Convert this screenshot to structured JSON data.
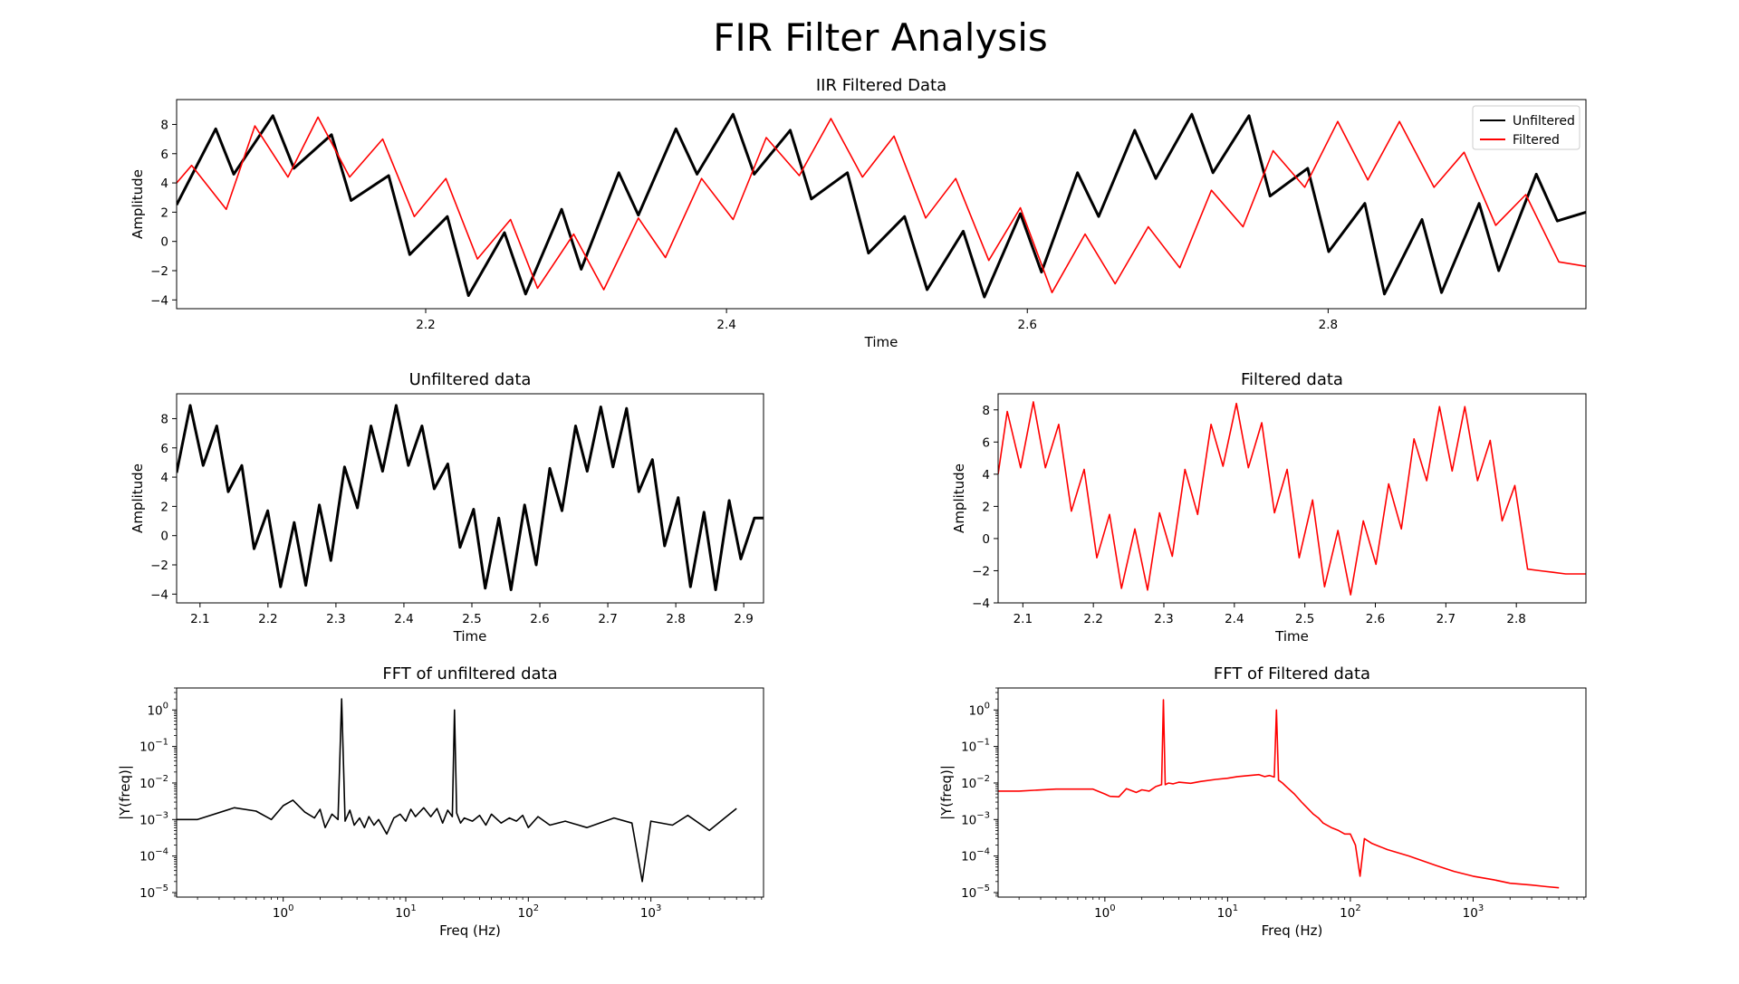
{
  "figure": {
    "suptitle": "FIR Filter Analysis",
    "colors": {
      "unfiltered": "#000000",
      "filtered": "#ff0000"
    }
  },
  "chart_data": [
    {
      "id": "p1",
      "type": "line",
      "title": "IIR Filtered Data",
      "xlabel": "Time",
      "ylabel": "Amplitude",
      "xlim": [
        2.0344,
        2.9714
      ],
      "ylim": [
        -4.6,
        9.7
      ],
      "xticks": [
        2.2,
        2.4,
        2.6,
        2.8
      ],
      "xtick_labels": [
        "2.2",
        "2.4",
        "2.6",
        "2.8"
      ],
      "yticks": [
        -4,
        -2,
        0,
        2,
        4,
        6,
        8
      ],
      "ytick_labels": [
        "−4",
        "−2",
        "0",
        "2",
        "4",
        "6",
        "8"
      ],
      "grid": false,
      "legend": "upper-right",
      "series": [
        {
          "name": "Unfiltered",
          "color": "#000000",
          "x": [
            2.0344,
            2.0604,
            2.0724,
            2.0984,
            2.1124,
            2.1374,
            2.1504,
            2.1754,
            2.1894,
            2.2144,
            2.2284,
            2.2524,
            2.2664,
            2.2904,
            2.3034,
            2.3284,
            2.3414,
            2.3664,
            2.3804,
            2.4044,
            2.4184,
            2.4424,
            2.4564,
            2.4804,
            2.4944,
            2.5184,
            2.5334,
            2.5574,
            2.5714,
            2.5954,
            2.6094,
            2.6334,
            2.6474,
            2.6714,
            2.6854,
            2.7094,
            2.7234,
            2.7474,
            2.7614,
            2.7864,
            2.8004,
            2.8244,
            2.8374,
            2.8624,
            2.8754,
            2.9004,
            2.9134,
            2.9384,
            2.9524,
            2.9714
          ],
          "y": [
            2.5,
            7.7,
            4.6,
            8.6,
            5.0,
            7.3,
            2.8,
            4.5,
            -0.9,
            1.7,
            -3.7,
            0.6,
            -3.6,
            2.2,
            -1.9,
            4.7,
            1.8,
            7.7,
            4.6,
            8.7,
            4.6,
            7.6,
            2.9,
            4.7,
            -0.8,
            1.7,
            -3.3,
            0.7,
            -3.8,
            1.9,
            -2.1,
            4.7,
            1.7,
            7.6,
            4.3,
            8.7,
            4.7,
            8.6,
            3.1,
            5.0,
            -0.7,
            2.6,
            -3.6,
            1.5,
            -3.5,
            2.6,
            -2.0,
            4.6,
            1.4,
            2.0
          ]
        },
        {
          "name": "Filtered",
          "color": "#ff0000",
          "x": [
            2.0344,
            2.0444,
            2.0674,
            2.0864,
            2.1084,
            2.1284,
            2.1494,
            2.1714,
            2.1924,
            2.2134,
            2.2344,
            2.2564,
            2.2744,
            2.2984,
            2.3184,
            2.3414,
            2.3594,
            2.3834,
            2.4044,
            2.4264,
            2.4484,
            2.4694,
            2.4904,
            2.5114,
            2.5324,
            2.5524,
            2.5744,
            2.5954,
            2.6164,
            2.6384,
            2.6584,
            2.6804,
            2.7014,
            2.7224,
            2.7434,
            2.7634,
            2.7844,
            2.8064,
            2.8264,
            2.8474,
            2.8704,
            2.8904,
            2.9114,
            2.9314,
            2.9534,
            2.9714
          ],
          "y": [
            4.0,
            5.2,
            2.2,
            7.9,
            4.4,
            8.5,
            4.4,
            7.0,
            1.7,
            4.3,
            -1.2,
            1.5,
            -3.2,
            0.5,
            -3.3,
            1.6,
            -1.1,
            4.3,
            1.5,
            7.1,
            4.5,
            8.4,
            4.4,
            7.2,
            1.6,
            4.3,
            -1.3,
            2.3,
            -3.5,
            0.5,
            -2.9,
            1.0,
            -1.8,
            3.5,
            1.0,
            6.2,
            3.7,
            8.2,
            4.2,
            8.2,
            3.7,
            6.1,
            1.1,
            3.2,
            -1.4,
            -1.7
          ]
        }
      ]
    },
    {
      "id": "p2",
      "type": "line",
      "title": "Unfiltered data",
      "xlabel": "Time",
      "ylabel": "Amplitude",
      "xlim": [
        2.0656,
        2.9291
      ],
      "ylim": [
        -4.6,
        9.7
      ],
      "xticks": [
        2.1,
        2.2,
        2.3,
        2.4,
        2.5,
        2.6,
        2.7,
        2.8,
        2.9
      ],
      "xtick_labels": [
        "2.1",
        "2.2",
        "2.3",
        "2.4",
        "2.5",
        "2.6",
        "2.7",
        "2.8",
        "2.9"
      ],
      "yticks": [
        -4,
        -2,
        0,
        2,
        4,
        6,
        8
      ],
      "ytick_labels": [
        "−4",
        "−2",
        "0",
        "2",
        "4",
        "6",
        "8"
      ],
      "series": [
        {
          "color": "#000000",
          "x": [
            2.0656,
            2.0856,
            2.1046,
            2.1246,
            2.1416,
            2.1616,
            2.1796,
            2.1996,
            2.2186,
            2.2386,
            2.2556,
            2.2756,
            2.2926,
            2.3126,
            2.3316,
            2.3516,
            2.3686,
            2.3886,
            2.4066,
            2.4266,
            2.4446,
            2.4646,
            2.4826,
            2.5026,
            2.5196,
            2.5396,
            2.5576,
            2.5776,
            2.5946,
            2.6146,
            2.6326,
            2.6526,
            2.6696,
            2.6896,
            2.7076,
            2.7276,
            2.7456,
            2.7656,
            2.7836,
            2.8036,
            2.8216,
            2.8416,
            2.8586,
            2.8786,
            2.8956,
            2.9156,
            2.9291
          ],
          "y": [
            4.3,
            8.9,
            4.8,
            7.5,
            3.0,
            4.8,
            -0.9,
            1.7,
            -3.5,
            0.9,
            -3.4,
            2.1,
            -1.7,
            4.7,
            1.9,
            7.5,
            4.4,
            8.9,
            4.8,
            7.5,
            3.2,
            4.9,
            -0.8,
            1.8,
            -3.6,
            1.2,
            -3.7,
            2.1,
            -2.0,
            4.6,
            1.7,
            7.5,
            4.4,
            8.8,
            4.7,
            8.7,
            3.0,
            5.2,
            -0.7,
            2.6,
            -3.5,
            1.6,
            -3.7,
            2.4,
            -1.6,
            1.2,
            1.2
          ]
        }
      ]
    },
    {
      "id": "p3",
      "type": "line",
      "title": "Filtered data",
      "xlabel": "Time",
      "ylabel": "Amplitude",
      "xlim": [
        2.0649,
        2.8987
      ],
      "ylim": [
        -4.0,
        9.0
      ],
      "xticks": [
        2.1,
        2.2,
        2.3,
        2.4,
        2.5,
        2.6,
        2.7,
        2.8
      ],
      "xtick_labels": [
        "2.1",
        "2.2",
        "2.3",
        "2.4",
        "2.5",
        "2.6",
        "2.7",
        "2.8"
      ],
      "yticks": [
        -4,
        -2,
        0,
        2,
        4,
        6,
        8
      ],
      "ytick_labels": [
        "−4",
        "−2",
        "0",
        "2",
        "4",
        "6",
        "8"
      ],
      "series": [
        {
          "color": "#ff0000",
          "x": [
            2.0649,
            2.0779,
            2.0969,
            2.1149,
            2.1319,
            2.1509,
            2.1689,
            2.1869,
            2.2049,
            2.2229,
            2.2399,
            2.2589,
            2.2769,
            2.2939,
            2.3119,
            2.3299,
            2.3479,
            2.3669,
            2.3839,
            2.4029,
            2.4199,
            2.4389,
            2.4569,
            2.4749,
            2.4919,
            2.5109,
            2.5279,
            2.5469,
            2.5649,
            2.5829,
            2.6009,
            2.6189,
            2.6369,
            2.6549,
            2.6729,
            2.6909,
            2.7089,
            2.7269,
            2.7449,
            2.7629,
            2.7799,
            2.7979,
            2.8159,
            2.8339,
            2.8519,
            2.8699,
            2.8879,
            2.8987
          ],
          "y": [
            4.0,
            7.9,
            4.4,
            8.5,
            4.4,
            7.1,
            1.7,
            4.3,
            -1.2,
            1.5,
            -3.1,
            0.6,
            -3.2,
            1.6,
            -1.1,
            4.3,
            1.5,
            7.1,
            4.5,
            8.4,
            4.4,
            7.2,
            1.6,
            4.3,
            -1.2,
            2.4,
            -3.0,
            0.5,
            -3.5,
            1.1,
            -1.6,
            3.4,
            0.6,
            6.2,
            3.6,
            8.2,
            4.2,
            8.2,
            3.6,
            6.1,
            1.1,
            3.3,
            -1.9,
            -2.0,
            -2.1,
            -2.2,
            -2.2,
            -2.2
          ]
        }
      ]
    },
    {
      "id": "p4",
      "type": "line",
      "title": "FFT of unfiltered data",
      "xlabel": "Freq (Hz)",
      "ylabel": "|Y(freq)|",
      "xscale": "log",
      "yscale": "log",
      "xlim": [
        0.135,
        8300
      ],
      "ylim": [
        7.5e-06,
        4
      ],
      "xticks": [
        1,
        10,
        100,
        1000
      ],
      "xtick_labels": [
        "10^0",
        "10^1",
        "10^2",
        "10^3"
      ],
      "yticks": [
        1e-05,
        0.0001,
        0.001,
        0.01,
        0.1,
        1
      ],
      "ytick_labels": [
        "10^−5",
        "10^−4",
        "10^−3",
        "10^−2",
        "10^−1",
        "10^0"
      ],
      "series": [
        {
          "color": "#000000",
          "x": [
            0.135,
            0.2,
            0.4,
            0.6,
            0.8,
            1.0,
            1.2,
            1.5,
            1.8,
            2.0,
            2.2,
            2.5,
            2.8,
            3.0,
            3.2,
            3.5,
            3.8,
            4.2,
            4.6,
            5,
            5.5,
            6,
            7,
            8,
            9,
            10,
            11,
            12,
            14,
            16,
            18,
            20,
            22,
            24,
            25,
            26,
            28,
            30,
            35,
            40,
            45,
            50,
            60,
            70,
            80,
            90,
            100,
            120,
            150,
            200,
            300,
            500,
            700,
            850,
            1000,
            1500,
            2000,
            3000,
            4000,
            5000
          ],
          "y": [
            0.001,
            0.001,
            0.0021,
            0.0017,
            0.001,
            0.0024,
            0.0034,
            0.0016,
            0.0011,
            0.0019,
            0.0006,
            0.0014,
            0.001,
            2.0,
            0.0009,
            0.0018,
            0.0007,
            0.0011,
            0.0006,
            0.0012,
            0.0007,
            0.001,
            0.0004,
            0.0011,
            0.0014,
            0.0009,
            0.0019,
            0.0012,
            0.0021,
            0.0012,
            0.002,
            0.0008,
            0.0018,
            0.0012,
            1.0,
            0.0015,
            0.0008,
            0.0011,
            0.0009,
            0.0013,
            0.0007,
            0.0014,
            0.0008,
            0.0011,
            0.0009,
            0.0013,
            0.0006,
            0.0012,
            0.0007,
            0.0009,
            0.0006,
            0.0011,
            0.0008,
            2e-05,
            0.0009,
            0.0007,
            0.0013,
            0.0005,
            0.0011,
            0.002
          ]
        }
      ]
    },
    {
      "id": "p5",
      "type": "line",
      "title": "FFT of Filtered data",
      "xlabel": "Freq (Hz)",
      "ylabel": "|Y(freq)|",
      "xscale": "log",
      "yscale": "log",
      "xlim": [
        0.135,
        8300
      ],
      "ylim": [
        7.5e-06,
        4
      ],
      "xticks": [
        1,
        10,
        100,
        1000
      ],
      "xtick_labels": [
        "10^0",
        "10^1",
        "10^2",
        "10^3"
      ],
      "yticks": [
        1e-05,
        0.0001,
        0.001,
        0.01,
        0.1,
        1
      ],
      "ytick_labels": [
        "10^−5",
        "10^−4",
        "10^−3",
        "10^−2",
        "10^−1",
        "10^0"
      ],
      "series": [
        {
          "color": "#ff0000",
          "x": [
            0.135,
            0.2,
            0.4,
            0.6,
            0.8,
            1.0,
            1.1,
            1.3,
            1.5,
            1.8,
            2.0,
            2.3,
            2.6,
            2.9,
            3.0,
            3.1,
            3.3,
            3.6,
            4,
            5,
            6,
            8,
            10,
            12,
            15,
            18,
            20,
            22,
            24,
            25,
            26,
            28,
            30,
            35,
            40,
            45,
            50,
            55,
            60,
            70,
            80,
            90,
            100,
            110,
            120,
            130,
            150,
            200,
            300,
            500,
            700,
            1000,
            1500,
            2000,
            3000,
            4000,
            5000
          ],
          "y": [
            0.006,
            0.006,
            0.0068,
            0.0068,
            0.0068,
            0.005,
            0.0043,
            0.0042,
            0.007,
            0.0055,
            0.0065,
            0.006,
            0.008,
            0.009,
            1.9,
            0.009,
            0.01,
            0.0095,
            0.0105,
            0.0098,
            0.011,
            0.0125,
            0.0135,
            0.015,
            0.016,
            0.017,
            0.015,
            0.016,
            0.0145,
            1.0,
            0.012,
            0.01,
            0.008,
            0.005,
            0.003,
            0.002,
            0.0014,
            0.0011,
            0.0008,
            0.0006,
            0.0005,
            0.0004,
            0.0004,
            0.0002,
            2.8e-05,
            0.0003,
            0.00022,
            0.00015,
            0.0001,
            5.5e-05,
            3.8e-05,
            2.8e-05,
            2.2e-05,
            1.8e-05,
            1.6e-05,
            1.45e-05,
            1.35e-05
          ]
        }
      ]
    }
  ]
}
